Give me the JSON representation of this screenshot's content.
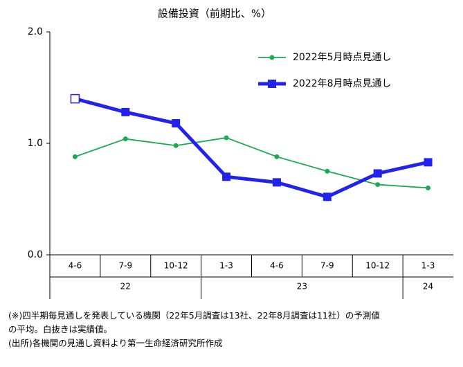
{
  "chart_data": {
    "type": "line",
    "title": "設備投資（前期比、%）",
    "category_groups": [
      {
        "label": "22",
        "categories": [
          "4-6",
          "7-9",
          "10-12"
        ]
      },
      {
        "label": "23",
        "categories": [
          "1-3",
          "4-6",
          "7-9",
          "10-12"
        ]
      },
      {
        "label": "24",
        "categories": [
          "1-3"
        ]
      }
    ],
    "series": [
      {
        "name": "2022年5月時点見通し",
        "color": "#1aaa55",
        "marker": "circle",
        "values": [
          0.88,
          1.04,
          0.98,
          1.05,
          0.88,
          0.75,
          0.63,
          0.6
        ]
      },
      {
        "name": "2022年8月時点見通し",
        "color": "#2222ee",
        "marker": "square",
        "hollow_points": [
          0
        ],
        "values": [
          1.4,
          1.28,
          1.18,
          0.7,
          0.65,
          0.52,
          0.73,
          0.83
        ]
      }
    ],
    "ylim": [
      0,
      2
    ],
    "yticks": [
      {
        "value": 0,
        "label": "0.0"
      },
      {
        "value": 1,
        "label": "1.0"
      },
      {
        "value": 2,
        "label": "2.0"
      }
    ],
    "legend": "upper right",
    "notes": [
      "(※)四半期毎見通しを発表している機関（22年5月調査は13社、22年8月調査は11社）の予測値",
      "の平均。白抜きは実績値。",
      "(出所)各機関の見通し資料より第一生命経済研究所作成"
    ]
  }
}
